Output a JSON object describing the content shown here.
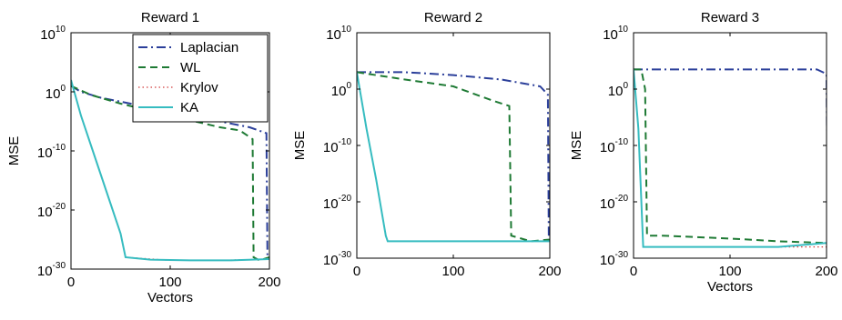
{
  "colors": {
    "Laplacian": "#2b3f9a",
    "WL": "#1e7a34",
    "Krylov": "#d13c3c",
    "KA": "#36bcc0"
  },
  "legend_placement": "top-right of first panel",
  "chart_data": [
    {
      "type": "line",
      "title": "Reward 1",
      "xlabel": "Vectors",
      "ylabel": "MSE",
      "xlim": [
        0,
        200
      ],
      "ylim": [
        1e-30,
        10000000000.0
      ],
      "yscale": "log",
      "xticks": [
        0,
        100,
        200
      ],
      "yticks": [
        {
          "mant": "10",
          "exp": "-30",
          "v": 1e-30
        },
        {
          "mant": "10",
          "exp": "-20",
          "v": 1e-20
        },
        {
          "mant": "10",
          "exp": "-10",
          "v": 1e-10
        },
        {
          "mant": "10",
          "exp": "0",
          "v": 1
        },
        {
          "mant": "10",
          "exp": "10",
          "v": 10000000000.0
        }
      ],
      "legend": [
        "Laplacian",
        "WL",
        "Krylov",
        "KA"
      ],
      "series": [
        {
          "name": "Laplacian",
          "style": "dashdot",
          "points": [
            [
              0,
              10.0
            ],
            [
              10,
              1
            ],
            [
              30,
              0.1
            ],
            [
              60,
              0.01
            ],
            [
              100,
              0.001
            ],
            [
              150,
              1e-05
            ],
            [
              180,
              1e-06
            ],
            [
              197,
              1e-07
            ],
            [
              198,
              1e-28
            ],
            [
              200,
              1e-28
            ]
          ]
        },
        {
          "name": "WL",
          "style": "dashed",
          "points": [
            [
              0,
              10
            ],
            [
              20,
              0.3
            ],
            [
              50,
              0.01
            ],
            [
              100,
              0.0001
            ],
            [
              150,
              1e-06
            ],
            [
              170,
              3e-07
            ],
            [
              183,
              1e-08
            ],
            [
              184,
              1e-28
            ],
            [
              190,
              3e-29
            ],
            [
              200,
              1e-28
            ]
          ]
        },
        {
          "name": "Krylov",
          "style": "dotted",
          "points": [
            [
              0,
              100.0
            ],
            [
              10,
              0.0001
            ],
            [
              20,
              1e-09
            ],
            [
              30,
              1e-14
            ],
            [
              40,
              1e-19
            ],
            [
              50,
              1e-24
            ],
            [
              55,
              1e-28
            ],
            [
              100,
              3e-29
            ],
            [
              150,
              3e-29
            ],
            [
              200,
              5e-29
            ]
          ]
        },
        {
          "name": "KA",
          "style": "solid",
          "points": [
            [
              0,
              100.0
            ],
            [
              10,
              0.0001
            ],
            [
              20,
              1e-09
            ],
            [
              30,
              1e-14
            ],
            [
              40,
              1e-19
            ],
            [
              50,
              1e-24
            ],
            [
              55,
              1e-28
            ],
            [
              80,
              4e-29
            ],
            [
              120,
              3e-29
            ],
            [
              160,
              3e-29
            ],
            [
              200,
              5e-29
            ]
          ]
        }
      ]
    },
    {
      "type": "line",
      "title": "Reward 2",
      "xlabel": "",
      "ylabel": "MSE",
      "xlim": [
        0,
        200
      ],
      "ylim": [
        1e-30,
        10000000000.0
      ],
      "yscale": "log",
      "xticks": [
        0,
        100,
        200
      ],
      "yticks": [
        {
          "mant": "10",
          "exp": "-30",
          "v": 1e-30
        },
        {
          "mant": "10",
          "exp": "-20",
          "v": 1e-20
        },
        {
          "mant": "10",
          "exp": "-10",
          "v": 1e-10
        },
        {
          "mant": "10",
          "exp": "0",
          "v": 1
        },
        {
          "mant": "10",
          "exp": "10",
          "v": 10000000000.0
        }
      ],
      "legend": [],
      "series": [
        {
          "name": "Laplacian",
          "style": "dashdot",
          "points": [
            [
              0,
              1000.0
            ],
            [
              50,
              1000.0
            ],
            [
              100,
              300.0
            ],
            [
              150,
              50
            ],
            [
              190,
              3
            ],
            [
              198,
              0.1
            ],
            [
              199,
              1e-27
            ],
            [
              200,
              1e-27
            ]
          ]
        },
        {
          "name": "WL",
          "style": "dashed",
          "points": [
            [
              0,
              1000.0
            ],
            [
              50,
              50
            ],
            [
              100,
              3
            ],
            [
              140,
              0.01
            ],
            [
              158,
              0.001
            ],
            [
              160,
              1e-26
            ],
            [
              180,
              1e-27
            ],
            [
              200,
              2e-27
            ]
          ]
        },
        {
          "name": "Krylov",
          "style": "dotted",
          "points": [
            [
              0,
              1000.0
            ],
            [
              10,
              1e-07
            ],
            [
              20,
              1e-16
            ],
            [
              30,
              1e-26
            ],
            [
              32,
              1e-27
            ],
            [
              100,
              1e-27
            ],
            [
              200,
              1e-27
            ]
          ]
        },
        {
          "name": "KA",
          "style": "solid",
          "points": [
            [
              0,
              1000.0
            ],
            [
              10,
              1e-07
            ],
            [
              20,
              1e-16
            ],
            [
              30,
              1e-26
            ],
            [
              32,
              1e-27
            ],
            [
              100,
              1e-27
            ],
            [
              200,
              1e-27
            ]
          ]
        }
      ]
    },
    {
      "type": "line",
      "title": "Reward 3",
      "xlabel": "Vectors",
      "ylabel": "MSE",
      "xlim": [
        0,
        200
      ],
      "ylim": [
        1e-30,
        10000000000.0
      ],
      "yscale": "log",
      "xticks": [
        0,
        100,
        200
      ],
      "yticks": [
        {
          "mant": "10",
          "exp": "-30",
          "v": 1e-30
        },
        {
          "mant": "10",
          "exp": "-20",
          "v": 1e-20
        },
        {
          "mant": "10",
          "exp": "-10",
          "v": 1e-10
        },
        {
          "mant": "10",
          "exp": "0",
          "v": 1
        },
        {
          "mant": "10",
          "exp": "10",
          "v": 10000000000.0
        }
      ],
      "legend": [],
      "series": [
        {
          "name": "Laplacian",
          "style": "dashdot",
          "points": [
            [
              0,
              3000.0
            ],
            [
              50,
              3000.0
            ],
            [
              100,
              3000.0
            ],
            [
              150,
              3000.0
            ],
            [
              190,
              3000.0
            ],
            [
              200,
              500.0
            ],
            [
              201,
              1e-20
            ]
          ]
        },
        {
          "name": "WL",
          "style": "dashed",
          "points": [
            [
              0,
              3000.0
            ],
            [
              8,
              3000.0
            ],
            [
              12,
              1
            ],
            [
              14,
              1e-26
            ],
            [
              30,
              1e-26
            ],
            [
              100,
              3e-27
            ],
            [
              150,
              1e-27
            ],
            [
              200,
              5e-28
            ]
          ]
        },
        {
          "name": "Krylov",
          "style": "dotted",
          "points": [
            [
              0,
              3000.0
            ],
            [
              5,
              1e-07
            ],
            [
              10,
              1e-28
            ],
            [
              15,
              1e-28
            ],
            [
              100,
              1e-28
            ],
            [
              200,
              1e-28
            ]
          ]
        },
        {
          "name": "KA",
          "style": "solid",
          "points": [
            [
              0,
              3000.0
            ],
            [
              5,
              1e-07
            ],
            [
              10,
              1e-28
            ],
            [
              15,
              1e-28
            ],
            [
              100,
              1e-28
            ],
            [
              150,
              1e-28
            ],
            [
              200,
              5e-28
            ]
          ]
        }
      ]
    }
  ]
}
